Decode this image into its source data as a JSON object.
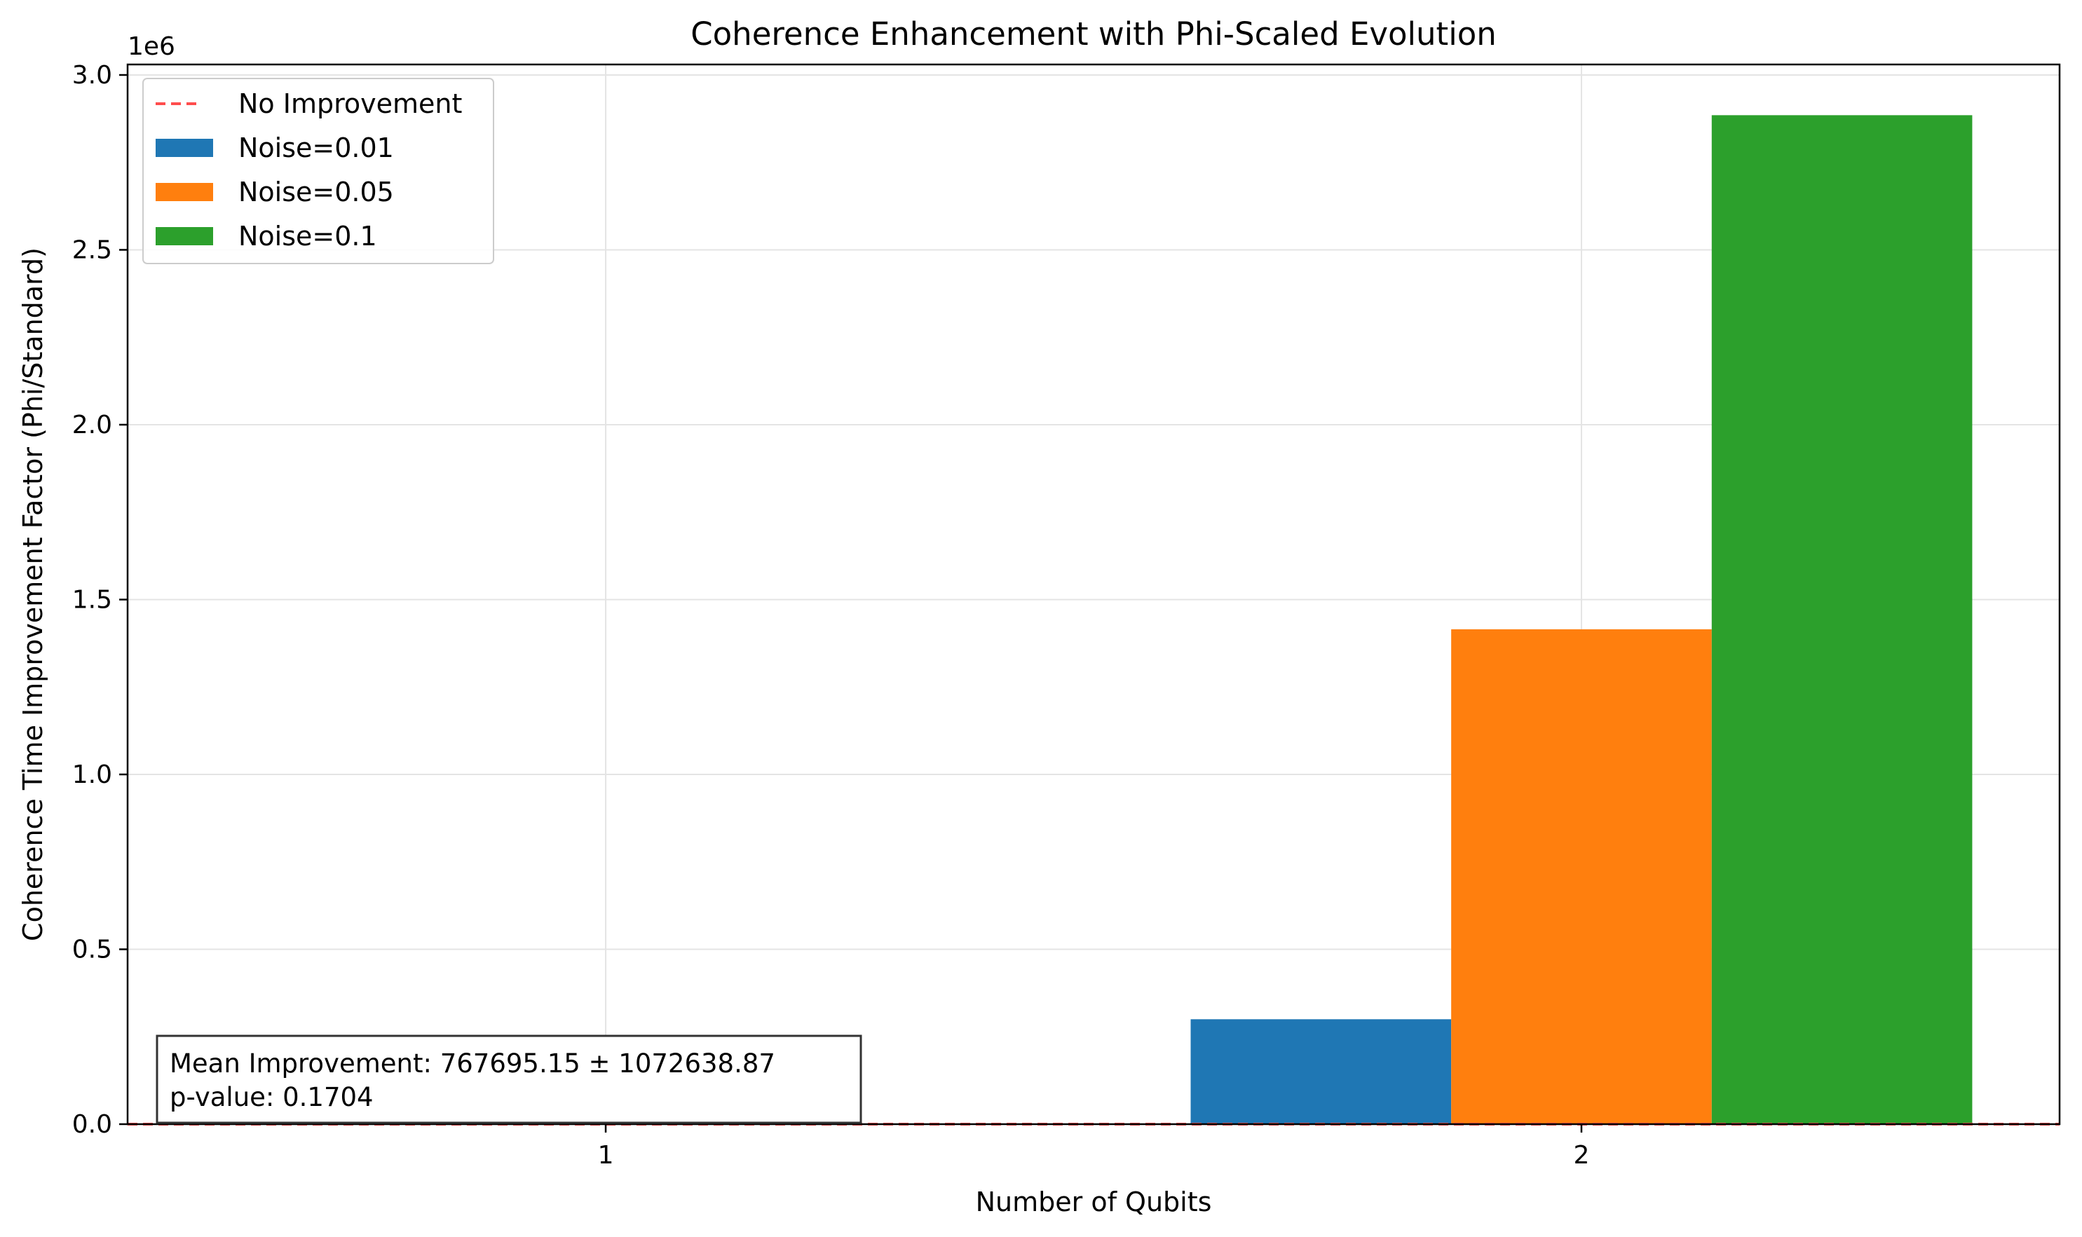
{
  "chart_data": {
    "type": "bar",
    "title": "Coherence Enhancement with Phi-Scaled Evolution",
    "xlabel": "Number of Qubits",
    "ylabel": "Coherence Time Improvement Factor (Phi/Standard)",
    "y_offset_label": "1e6",
    "categories": [
      "1",
      "2"
    ],
    "x": [
      1,
      2
    ],
    "series": [
      {
        "name": "Noise=0.01",
        "color": "#1f77b4",
        "values": [
          1.2,
          300000
        ]
      },
      {
        "name": "Noise=0.05",
        "color": "#ff7f0e",
        "values": [
          1.1,
          1415000
        ]
      },
      {
        "name": "Noise=0.1",
        "color": "#2ca02c",
        "values": [
          1.3,
          2885000
        ]
      }
    ],
    "reference_line": {
      "name": "No Improvement",
      "y": 1,
      "color": "#ff4d4d",
      "style": "dashed"
    },
    "ylim": [
      0,
      3030000
    ],
    "xlim": [
      0.51,
      2.49
    ],
    "yticks": [
      0,
      500000,
      1000000,
      1500000,
      2000000,
      2500000,
      3000000
    ],
    "ytick_labels": [
      "0.0",
      "0.5",
      "1.0",
      "1.5",
      "2.0",
      "2.5",
      "3.0"
    ],
    "bar_width": 0.267,
    "grid": true,
    "legend_position": "top-left",
    "annotation": {
      "line1": "Mean Improvement: 767695.15 ± 1072638.87",
      "line2": "p-value: 0.1704",
      "position": "bottom-left"
    }
  }
}
